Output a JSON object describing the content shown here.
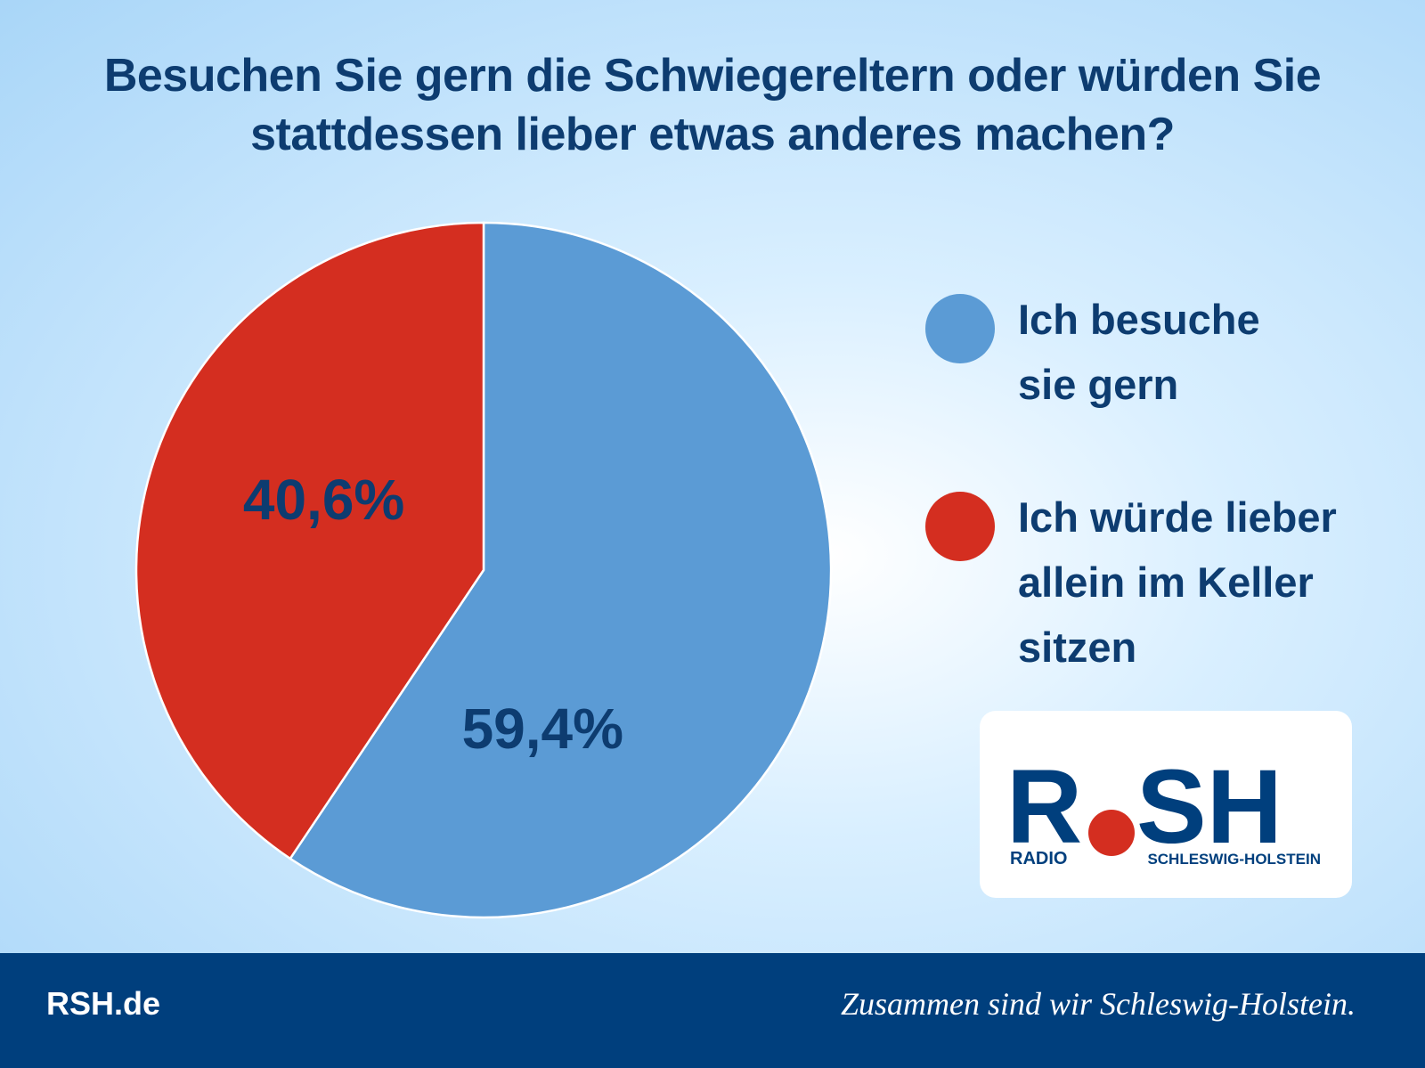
{
  "chart_data": {
    "type": "pie",
    "title": "Besuchen Sie gern die Schwiegereltern oder würden Sie stattdessen lieber etwas anderes machen?",
    "categories": [
      "Ich besuche sie gern",
      "Ich würde lieber allein im Keller sitzen"
    ],
    "values": [
      59.4,
      40.6
    ],
    "value_labels": [
      "59,4%",
      "40,6%"
    ],
    "colors": [
      "#5b9bd5",
      "#d42e20"
    ],
    "start_angle": 0,
    "direction": "clockwise"
  },
  "logo": {
    "brand_left": "R",
    "brand_right": "SH",
    "radio": "RADIO",
    "region": "SCHLESWIG-HOLSTEIN"
  },
  "footer": {
    "site": "RSH.de",
    "slogan": "Zusammen sind wir Schleswig-Holstein."
  }
}
